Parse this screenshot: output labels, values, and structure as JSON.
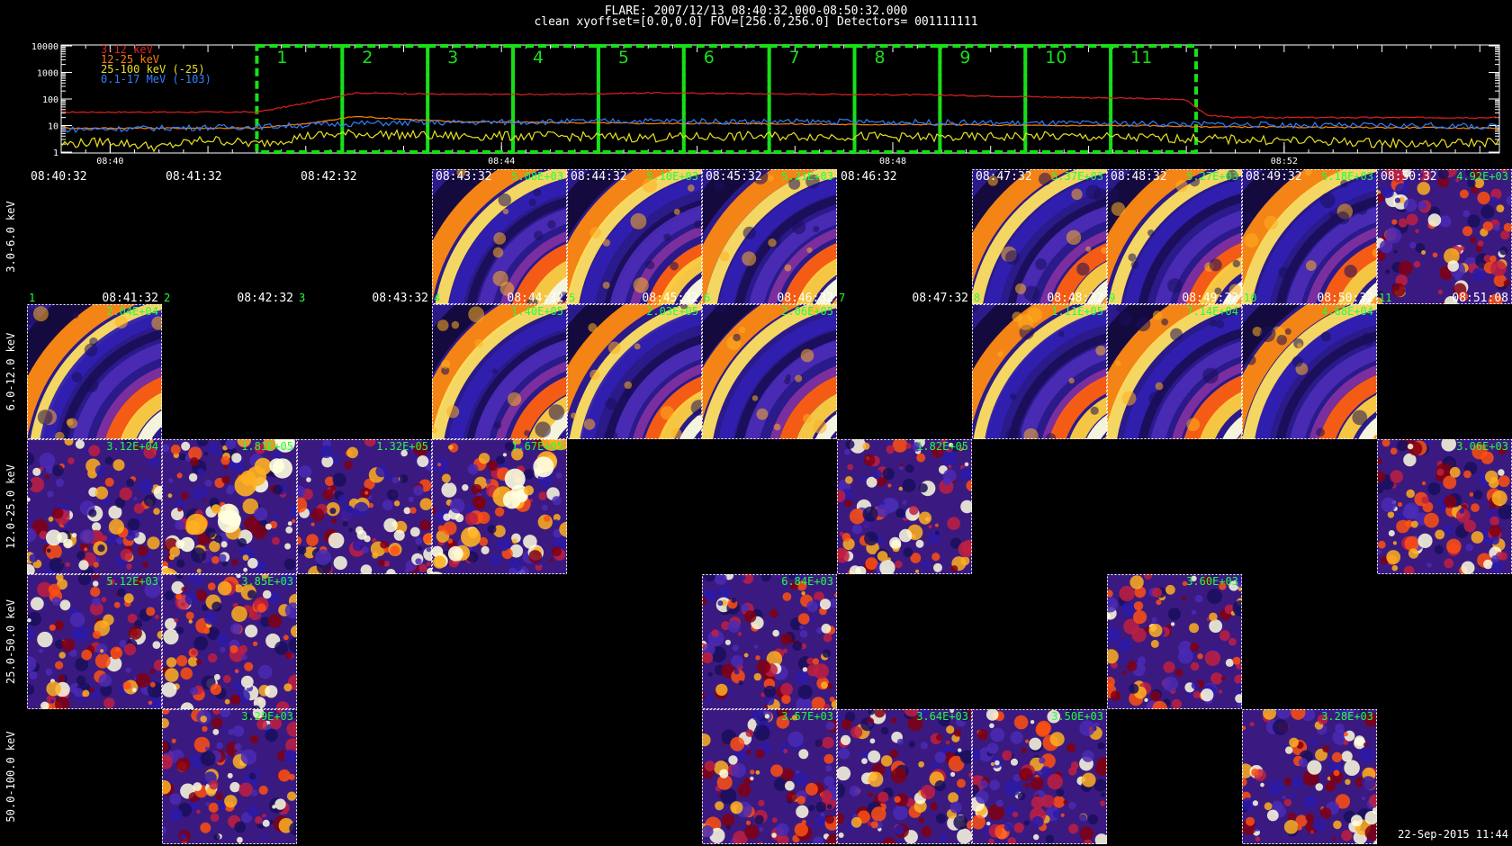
{
  "header": {
    "title": "FLARE: 2007/12/13 08:40:32.000-08:50:32.000",
    "subtitle": "clean    xyoffset=[0.0,0.0]    FOV=[256.0,256.0]    Detectors= 001111111"
  },
  "timestamp": "22-Sep-2015 11:44",
  "colors": {
    "interval_box": "#18e018",
    "panel_text": "#20ff40",
    "background": "#000000"
  },
  "chart_data": [
    {
      "type": "line",
      "yscale": "log",
      "ylim": [
        1,
        10000
      ],
      "ytick_labels": [
        "10000",
        "1000",
        "100",
        "10",
        "1"
      ],
      "xrange_minutes": [
        0,
        14.7
      ],
      "xtick_labels": [
        {
          "label": "08:40",
          "min": 0.5
        },
        {
          "label": "08:44",
          "min": 4.5
        },
        {
          "label": "08:48",
          "min": 8.5
        },
        {
          "label": "08:52",
          "min": 12.5
        }
      ],
      "series": [
        {
          "name": "3-12 keV",
          "color": "#e02020",
          "x": [
            0,
            2,
            2.5,
            3,
            4,
            5,
            6,
            7,
            8,
            9,
            10,
            11,
            11.5,
            11.7,
            12,
            14.7
          ],
          "values": [
            32,
            32,
            70,
            170,
            150,
            150,
            170,
            160,
            150,
            140,
            120,
            105,
            95,
            25,
            20,
            20
          ]
        },
        {
          "name": "12-25 keV",
          "color": "#ff7f00",
          "x": [
            0,
            2,
            2.6,
            3,
            4,
            5,
            6,
            7,
            8,
            9,
            10,
            11,
            11.7,
            14.7
          ],
          "values": [
            8,
            8,
            13,
            22,
            14,
            13,
            12,
            12,
            11,
            11,
            10,
            10,
            9,
            8
          ]
        },
        {
          "name": "25-100 keV (-25)",
          "color": "#e8e020",
          "x": [
            0,
            0.5,
            1,
            1.5,
            2,
            2.5,
            3,
            4,
            5,
            6,
            7,
            8,
            9,
            10,
            11,
            12,
            13,
            14,
            14.7
          ],
          "values": [
            2,
            2.5,
            1.5,
            3,
            2,
            4,
            5,
            4,
            4,
            3.5,
            4,
            4,
            3.5,
            4,
            3.5,
            3,
            2.5,
            2,
            2.5
          ]
        },
        {
          "name": "0.1-17 MeV (-103)",
          "color": "#3080ff",
          "x": [
            0,
            1,
            2,
            3,
            4,
            5,
            6,
            7,
            8,
            9,
            10,
            11,
            12,
            13,
            14,
            14.7
          ],
          "values": [
            7,
            8,
            9,
            12,
            13,
            14,
            15,
            14,
            14,
            13,
            12,
            12,
            11,
            10,
            10,
            9
          ]
        }
      ],
      "intervals": [
        "1",
        "2",
        "3",
        "4",
        "5",
        "6",
        "7",
        "8",
        "9",
        "10",
        "11"
      ]
    },
    {
      "type": "heatmap",
      "energy_bands": [
        "3.0-6.0 keV",
        "6.0-12.0 keV",
        "12.0-25.0 keV",
        "25.0-50.0 keV",
        "50.0-100.0 keV"
      ],
      "row0_times": [
        "08:40:32",
        "08:41:32",
        "08:42:32",
        "08:43:32",
        "08:44:32",
        "08:45:32",
        "08:46:32",
        "08:47:32",
        "08:48:32",
        "08:49:32",
        "08:50:32"
      ],
      "interval_labels": [
        {
          "num": "1",
          "time": "08:41:32"
        },
        {
          "num": "2",
          "time": "08:42:32"
        },
        {
          "num": "3",
          "time": "08:43:32"
        },
        {
          "num": "4",
          "time": "08:44:32"
        },
        {
          "num": "5",
          "time": "08:45:32"
        },
        {
          "num": "6",
          "time": "08:46:32"
        },
        {
          "num": "7",
          "time": "08:47:32"
        },
        {
          "num": "8",
          "time": "08:48:32"
        },
        {
          "num": "9",
          "time": "08:49:32"
        },
        {
          "num": "10",
          "time": "08:50:32"
        },
        {
          "num": "11",
          "time": "08:51:08"
        }
      ],
      "panels": [
        {
          "row": 0,
          "col": 3,
          "peak": "5.08E+03",
          "style": "arcs"
        },
        {
          "row": 0,
          "col": 4,
          "peak": "5.10E+03",
          "style": "arcs"
        },
        {
          "row": 0,
          "col": 5,
          "peak": "5.21E+03",
          "style": "arcs"
        },
        {
          "row": 0,
          "col": 7,
          "peak": "5.37E+03",
          "style": "arcs"
        },
        {
          "row": 0,
          "col": 8,
          "peak": "5.27E+03",
          "style": "arcs"
        },
        {
          "row": 0,
          "col": 9,
          "peak": "5.18E+03",
          "style": "arcs"
        },
        {
          "row": 0,
          "col": 10,
          "peak": "4.92E+03",
          "style": "noisy"
        },
        {
          "row": 1,
          "col": 0,
          "peak": "2.04E+04",
          "style": "arcs"
        },
        {
          "row": 1,
          "col": 3,
          "peak": "1.40E+05",
          "style": "arcs"
        },
        {
          "row": 1,
          "col": 4,
          "peak": "2.03E+05",
          "style": "arcs"
        },
        {
          "row": 1,
          "col": 5,
          "peak": "2.06E+05",
          "style": "arcs"
        },
        {
          "row": 1,
          "col": 7,
          "peak": "1.11E+05",
          "style": "arcs"
        },
        {
          "row": 1,
          "col": 8,
          "peak": "7.14E+04",
          "style": "arcs"
        },
        {
          "row": 1,
          "col": 9,
          "peak": "4.68E+04",
          "style": "arcs"
        },
        {
          "row": 2,
          "col": 0,
          "peak": "3.12E+04",
          "style": "noisy"
        },
        {
          "row": 2,
          "col": 1,
          "peak": "1.81E+05",
          "style": "band"
        },
        {
          "row": 2,
          "col": 2,
          "peak": "1.32E+05",
          "style": "noisy"
        },
        {
          "row": 2,
          "col": 3,
          "peak": "1.67E+05",
          "style": "band"
        },
        {
          "row": 2,
          "col": 6,
          "peak": "1.82E+05",
          "style": "noisy"
        },
        {
          "row": 2,
          "col": 10,
          "peak": "3.06E+03",
          "style": "noisy"
        },
        {
          "row": 3,
          "col": 0,
          "peak": "5.12E+03",
          "style": "noisy"
        },
        {
          "row": 3,
          "col": 1,
          "peak": "3.85E+03",
          "style": "noisy"
        },
        {
          "row": 3,
          "col": 5,
          "peak": "6.84E+03",
          "style": "noisy"
        },
        {
          "row": 3,
          "col": 8,
          "peak": "3.60E+03",
          "style": "noisy"
        },
        {
          "row": 4,
          "col": 1,
          "peak": "3.29E+03",
          "style": "noisy"
        },
        {
          "row": 4,
          "col": 5,
          "peak": "3.57E+03",
          "style": "noisy"
        },
        {
          "row": 4,
          "col": 6,
          "peak": "3.64E+03",
          "style": "noisy"
        },
        {
          "row": 4,
          "col": 7,
          "peak": "3.50E+03",
          "style": "noisy"
        },
        {
          "row": 4,
          "col": 9,
          "peak": "3.28E+03",
          "style": "noisy"
        }
      ]
    }
  ]
}
